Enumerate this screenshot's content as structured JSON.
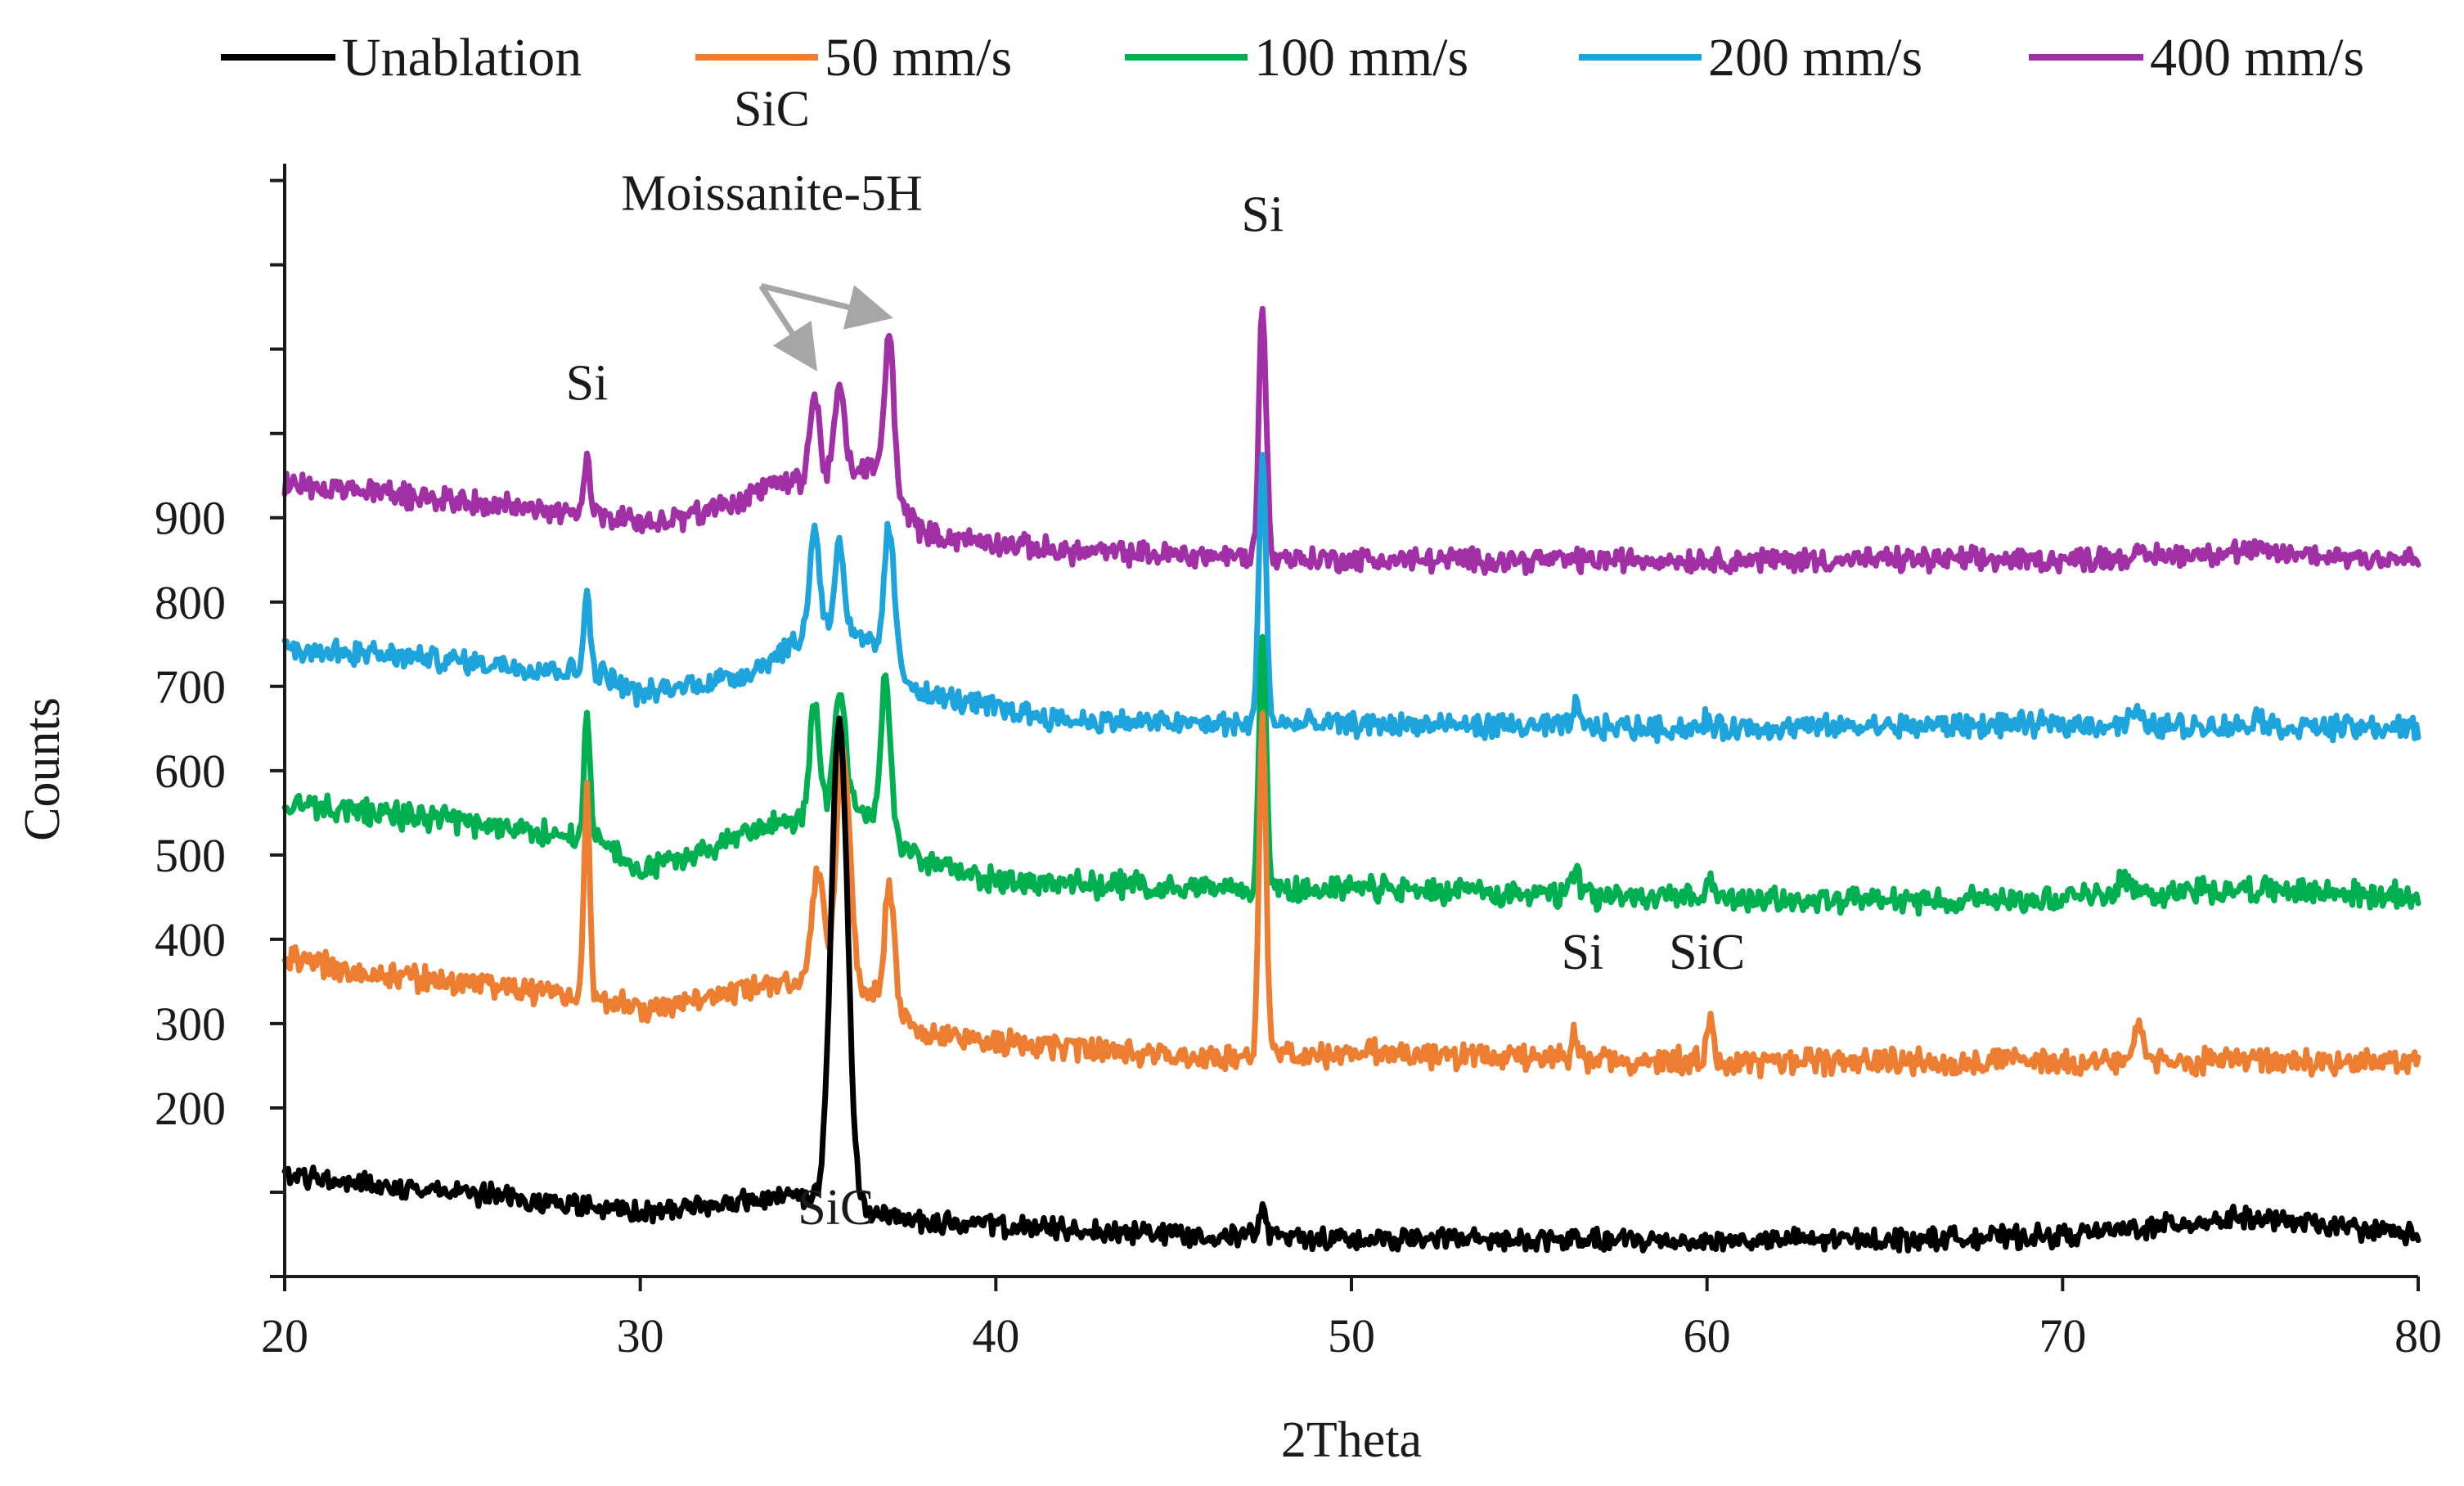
{
  "chart_data": {
    "type": "line",
    "title": "",
    "xlabel": "2Theta",
    "ylabel": "Counts",
    "xlim": [
      20,
      80
    ],
    "ylim": [
      0,
      1320
    ],
    "x_ticks": [
      20,
      30,
      40,
      50,
      60,
      70,
      80
    ],
    "y_tick_labels": [
      200,
      300,
      400,
      500,
      600,
      700,
      800,
      900
    ],
    "y_minor_ticks": [
      0,
      100,
      200,
      300,
      400,
      500,
      600,
      700,
      800,
      900,
      1000,
      1100,
      1200,
      1300
    ],
    "grid": false,
    "legend_position": "top",
    "series": [
      {
        "name": "Unablation",
        "color": "#000000",
        "baseline": [
          [
            20,
            120
          ],
          [
            26,
            95
          ],
          [
            30,
            75
          ],
          [
            34,
            95
          ],
          [
            38,
            65
          ],
          [
            42,
            55
          ],
          [
            50,
            45
          ],
          [
            60,
            42
          ],
          [
            66,
            45
          ],
          [
            70,
            48
          ],
          [
            75,
            70
          ],
          [
            80,
            50
          ]
        ],
        "peaks": [
          [
            35.6,
            580,
            0.5
          ],
          [
            47.5,
            32,
            0.2
          ]
        ],
        "noise": 10
      },
      {
        "name": "50 mm/s",
        "color": "#ed7d31",
        "baseline": [
          [
            20,
            380
          ],
          [
            22,
            360
          ],
          [
            26,
            345
          ],
          [
            29,
            330
          ],
          [
            30,
            315
          ],
          [
            34,
            350
          ],
          [
            36,
            350
          ],
          [
            38,
            290
          ],
          [
            42,
            270
          ],
          [
            46,
            260
          ],
          [
            50,
            265
          ],
          [
            60,
            255
          ],
          [
            70,
            255
          ],
          [
            80,
            255
          ]
        ],
        "peaks": [
          [
            28.5,
            240,
            0.17
          ],
          [
            35.0,
            130,
            0.35
          ],
          [
            35.7,
            280,
            0.4
          ],
          [
            37.0,
            140,
            0.3
          ],
          [
            47.5,
            400,
            0.22
          ],
          [
            56.3,
            35,
            0.2
          ],
          [
            60.1,
            60,
            0.18
          ],
          [
            72.1,
            35,
            0.3
          ]
        ],
        "noise": 12
      },
      {
        "name": "100 mm/s",
        "color": "#00b050",
        "baseline": [
          [
            20,
            560
          ],
          [
            25,
            540
          ],
          [
            29,
            515
          ],
          [
            30,
            480
          ],
          [
            34,
            540
          ],
          [
            36,
            560
          ],
          [
            38,
            490
          ],
          [
            40,
            470
          ],
          [
            46,
            460
          ],
          [
            50,
            460
          ],
          [
            58,
            450
          ],
          [
            65,
            445
          ],
          [
            70,
            450
          ],
          [
            75,
            460
          ],
          [
            80,
            450
          ]
        ],
        "peaks": [
          [
            28.5,
            160,
            0.17
          ],
          [
            34.9,
            130,
            0.3
          ],
          [
            35.6,
            140,
            0.35
          ],
          [
            36.9,
            180,
            0.3
          ],
          [
            47.5,
            300,
            0.22
          ],
          [
            56.3,
            35,
            0.2
          ],
          [
            60.1,
            25,
            0.2
          ],
          [
            71.7,
            25,
            0.3
          ]
        ],
        "noise": 12
      },
      {
        "name": "200 mm/s",
        "color": "#1ea4dc",
        "baseline": [
          [
            20,
            745
          ],
          [
            25,
            730
          ],
          [
            29,
            715
          ],
          [
            30,
            690
          ],
          [
            33,
            715
          ],
          [
            35,
            770
          ],
          [
            36.5,
            750
          ],
          [
            38,
            690
          ],
          [
            42,
            660
          ],
          [
            46,
            655
          ],
          [
            50,
            655
          ],
          [
            60,
            650
          ],
          [
            70,
            655
          ],
          [
            80,
            650
          ]
        ],
        "peaks": [
          [
            28.5,
            110,
            0.17
          ],
          [
            34.9,
            120,
            0.3
          ],
          [
            35.6,
            110,
            0.3
          ],
          [
            37.0,
            160,
            0.3
          ],
          [
            47.5,
            320,
            0.22
          ],
          [
            56.3,
            25,
            0.2
          ],
          [
            60.0,
            10,
            0.2
          ],
          [
            72.0,
            15,
            0.3
          ],
          [
            75.5,
            15,
            0.3
          ]
        ],
        "noise": 11
      },
      {
        "name": "400 mm/s",
        "color": "#a12fa5",
        "baseline": [
          [
            20,
            940
          ],
          [
            25,
            920
          ],
          [
            29,
            900
          ],
          [
            31,
            895
          ],
          [
            34,
            940
          ],
          [
            36.5,
            960
          ],
          [
            38,
            880
          ],
          [
            42,
            860
          ],
          [
            46,
            855
          ],
          [
            50,
            850
          ],
          [
            60,
            850
          ],
          [
            70,
            850
          ],
          [
            75,
            860
          ],
          [
            80,
            850
          ]
        ],
        "peaks": [
          [
            28.5,
            75,
            0.17
          ],
          [
            34.9,
            95,
            0.3
          ],
          [
            35.6,
            100,
            0.3
          ],
          [
            37.0,
            180,
            0.3
          ],
          [
            47.5,
            300,
            0.22
          ]
        ],
        "noise": 11
      }
    ],
    "annotations": [
      {
        "text": "Si",
        "x": 28.5,
        "y": 1040
      },
      {
        "text": "SiC",
        "x": 33.7,
        "y": 1365
      },
      {
        "text": "Moissanite-5H",
        "x": 33.7,
        "y": 1265
      },
      {
        "text": "Si",
        "x": 47.5,
        "y": 1240
      },
      {
        "text": "Si",
        "x": 56.5,
        "y": 365
      },
      {
        "text": "SiC",
        "x": 60.0,
        "y": 365
      },
      {
        "text": "SiC",
        "x": 35.5,
        "y": 62
      }
    ],
    "arrows": [
      {
        "from": [
          33.4,
          1175
        ],
        "to": [
          34.8,
          1085
        ]
      },
      {
        "from": [
          33.4,
          1175
        ],
        "to": [
          36.8,
          1140
        ]
      }
    ]
  }
}
